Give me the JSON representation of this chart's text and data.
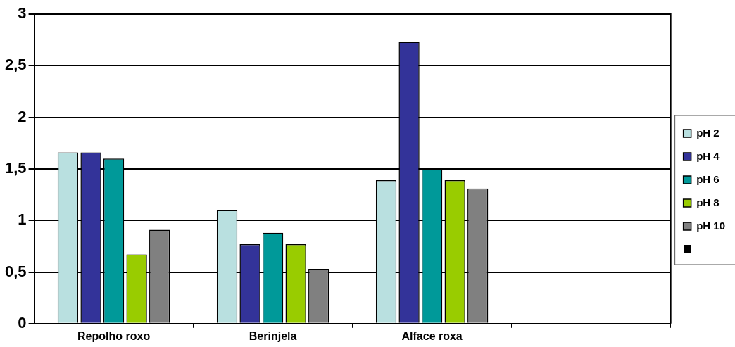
{
  "chart_data": {
    "type": "bar",
    "categories": [
      "Repolho roxo",
      "Berinjela",
      "Alface roxa",
      null
    ],
    "series": [
      {
        "name": "pH 2",
        "color": "#b9e0e0",
        "values": [
          1.66,
          1.1,
          1.39,
          null
        ]
      },
      {
        "name": "pH 4",
        "color": "#333399",
        "values": [
          1.66,
          0.77,
          2.73,
          null
        ]
      },
      {
        "name": "pH 6",
        "color": "#009999",
        "values": [
          1.6,
          0.88,
          1.5,
          null
        ]
      },
      {
        "name": "pH 8",
        "color": "#99cc00",
        "values": [
          0.67,
          0.77,
          1.39,
          null
        ]
      },
      {
        "name": "pH 10",
        "color": "#808080",
        "values": [
          0.91,
          0.53,
          1.31,
          null
        ]
      }
    ],
    "ylim": [
      0,
      3
    ],
    "yticks": [
      0,
      {
        "value": 0.5,
        "label": "0,5"
      },
      1,
      {
        "value": 1.5,
        "label": "1,5"
      },
      2,
      {
        "value": 2.5,
        "label": "2,5"
      },
      3
    ],
    "grid": "y",
    "legend": "right"
  }
}
